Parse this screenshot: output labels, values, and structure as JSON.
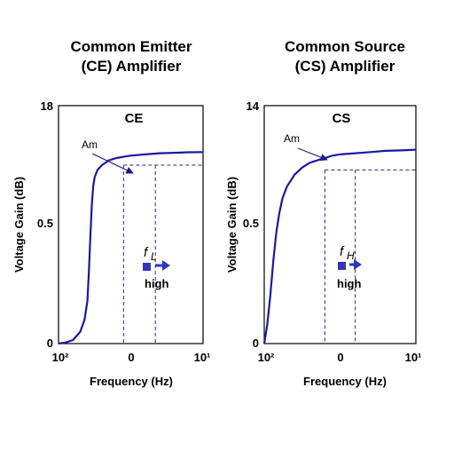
{
  "colors": {
    "curve": "#1a1a9e",
    "marker": "#3333bb",
    "dash": "#2a2a7a",
    "text": "#000000"
  },
  "chart_data": [
    {
      "type": "line",
      "title_lines": [
        "Common Emitter",
        "(CE) Amplifier"
      ],
      "panel_label": "CE",
      "xlabel": "Frequency (Hz)",
      "ylabel": "Voltage Gain (dB)",
      "x_ticks": [
        "10²",
        "0",
        "10¹"
      ],
      "y_ticks": [
        "18",
        "0.5",
        "0"
      ],
      "annotation": "Am",
      "marker_symbol": "f",
      "marker_sub": "L",
      "marker_note": "high",
      "series": [
        {
          "x": [
            0,
            0.05,
            0.1,
            0.15,
            0.18,
            0.2,
            0.21,
            0.22,
            0.23,
            0.24,
            0.25,
            0.27,
            0.3,
            0.35,
            0.4,
            0.45,
            0.5,
            0.6,
            0.7,
            0.8,
            0.9,
            1.0
          ],
          "y": [
            0,
            0.005,
            0.015,
            0.05,
            0.1,
            0.18,
            0.3,
            0.45,
            0.58,
            0.66,
            0.7,
            0.73,
            0.75,
            0.77,
            0.78,
            0.785,
            0.79,
            0.795,
            0.8,
            0.802,
            0.804,
            0.805
          ]
        }
      ],
      "guides": {
        "cursor_x": [
          0.45,
          0.67
        ],
        "cursor_y": 0.75
      }
    },
    {
      "type": "line",
      "title_lines": [
        "Common Source",
        "(CS) Amplifier"
      ],
      "panel_label": "CS",
      "xlabel": "Frequency (Hz)",
      "ylabel": "Voltage Gain (dB)",
      "x_ticks": [
        "10²",
        "0",
        "10¹"
      ],
      "y_ticks": [
        "14",
        "0.5",
        "0"
      ],
      "annotation": "Am",
      "marker_symbol": "f",
      "marker_sub": "H",
      "marker_note": "high",
      "series": [
        {
          "x": [
            0,
            0.02,
            0.04,
            0.06,
            0.08,
            0.1,
            0.12,
            0.15,
            0.2,
            0.25,
            0.3,
            0.35,
            0.4,
            0.45,
            0.5,
            0.6,
            0.7,
            0.8,
            0.9,
            1.0
          ],
          "y": [
            0,
            0.08,
            0.2,
            0.35,
            0.47,
            0.55,
            0.61,
            0.66,
            0.71,
            0.74,
            0.76,
            0.77,
            0.78,
            0.79,
            0.795,
            0.8,
            0.805,
            0.81,
            0.812,
            0.815
          ]
        }
      ],
      "guides": {
        "cursor_x": [
          0.4,
          0.6
        ],
        "cursor_y": 0.73
      }
    }
  ]
}
